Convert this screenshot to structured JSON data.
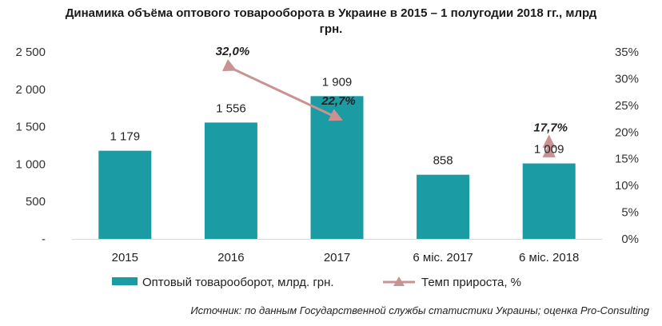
{
  "chart_data": {
    "type": "bar",
    "title": "Динамика объёма оптового товарооборота в Украине в 2015 – 1 полугодии 2018 гг., млрд грн.",
    "categories": [
      "2015",
      "2016",
      "2017",
      "6 міс. 2017",
      "6 міс. 2018"
    ],
    "series": [
      {
        "name": "Оптовый товарооборот, млрд. грн.",
        "type": "bar",
        "axis": "left",
        "color": "#1b9ba3",
        "values": [
          1179,
          1556,
          1909,
          858,
          1009
        ],
        "labels": [
          "1 179",
          "1 556",
          "1 909",
          "858",
          "1 009"
        ]
      },
      {
        "name": "Темп прироста, %",
        "type": "line",
        "axis": "right",
        "color": "#c99393",
        "segments": [
          {
            "from": "2016",
            "to": "2017",
            "from_value": 32.0,
            "to_value": 22.7
          },
          {
            "from": "6 міс. 2018",
            "to": "6 міс. 2018",
            "from_value": 17.7,
            "to_value": 17.7
          }
        ],
        "labels": [
          {
            "category": "2016",
            "value": 32.0,
            "text": "32,0%"
          },
          {
            "category": "2017",
            "value": 22.7,
            "text": "22,7%"
          },
          {
            "category": "6 міс. 2018",
            "value": 17.7,
            "text": "17,7%"
          }
        ]
      }
    ],
    "y_left": {
      "range": [
        0,
        2500
      ],
      "ticks": [
        2500,
        2000,
        1500,
        1000,
        500,
        0
      ],
      "tick_labels": [
        "2 500",
        "2 000",
        "1 500",
        "1 000",
        "500",
        "-"
      ]
    },
    "y_right": {
      "range": [
        0,
        35
      ],
      "ticks": [
        35,
        30,
        25,
        20,
        15,
        10,
        5,
        0
      ],
      "tick_labels": [
        "35%",
        "30%",
        "25%",
        "20%",
        "15%",
        "10%",
        "5%",
        "0%"
      ]
    },
    "grid": false,
    "legend_position": "bottom"
  },
  "source": "Источник: по данным Государственной службы статистики Украины; оценка Pro-Consulting"
}
